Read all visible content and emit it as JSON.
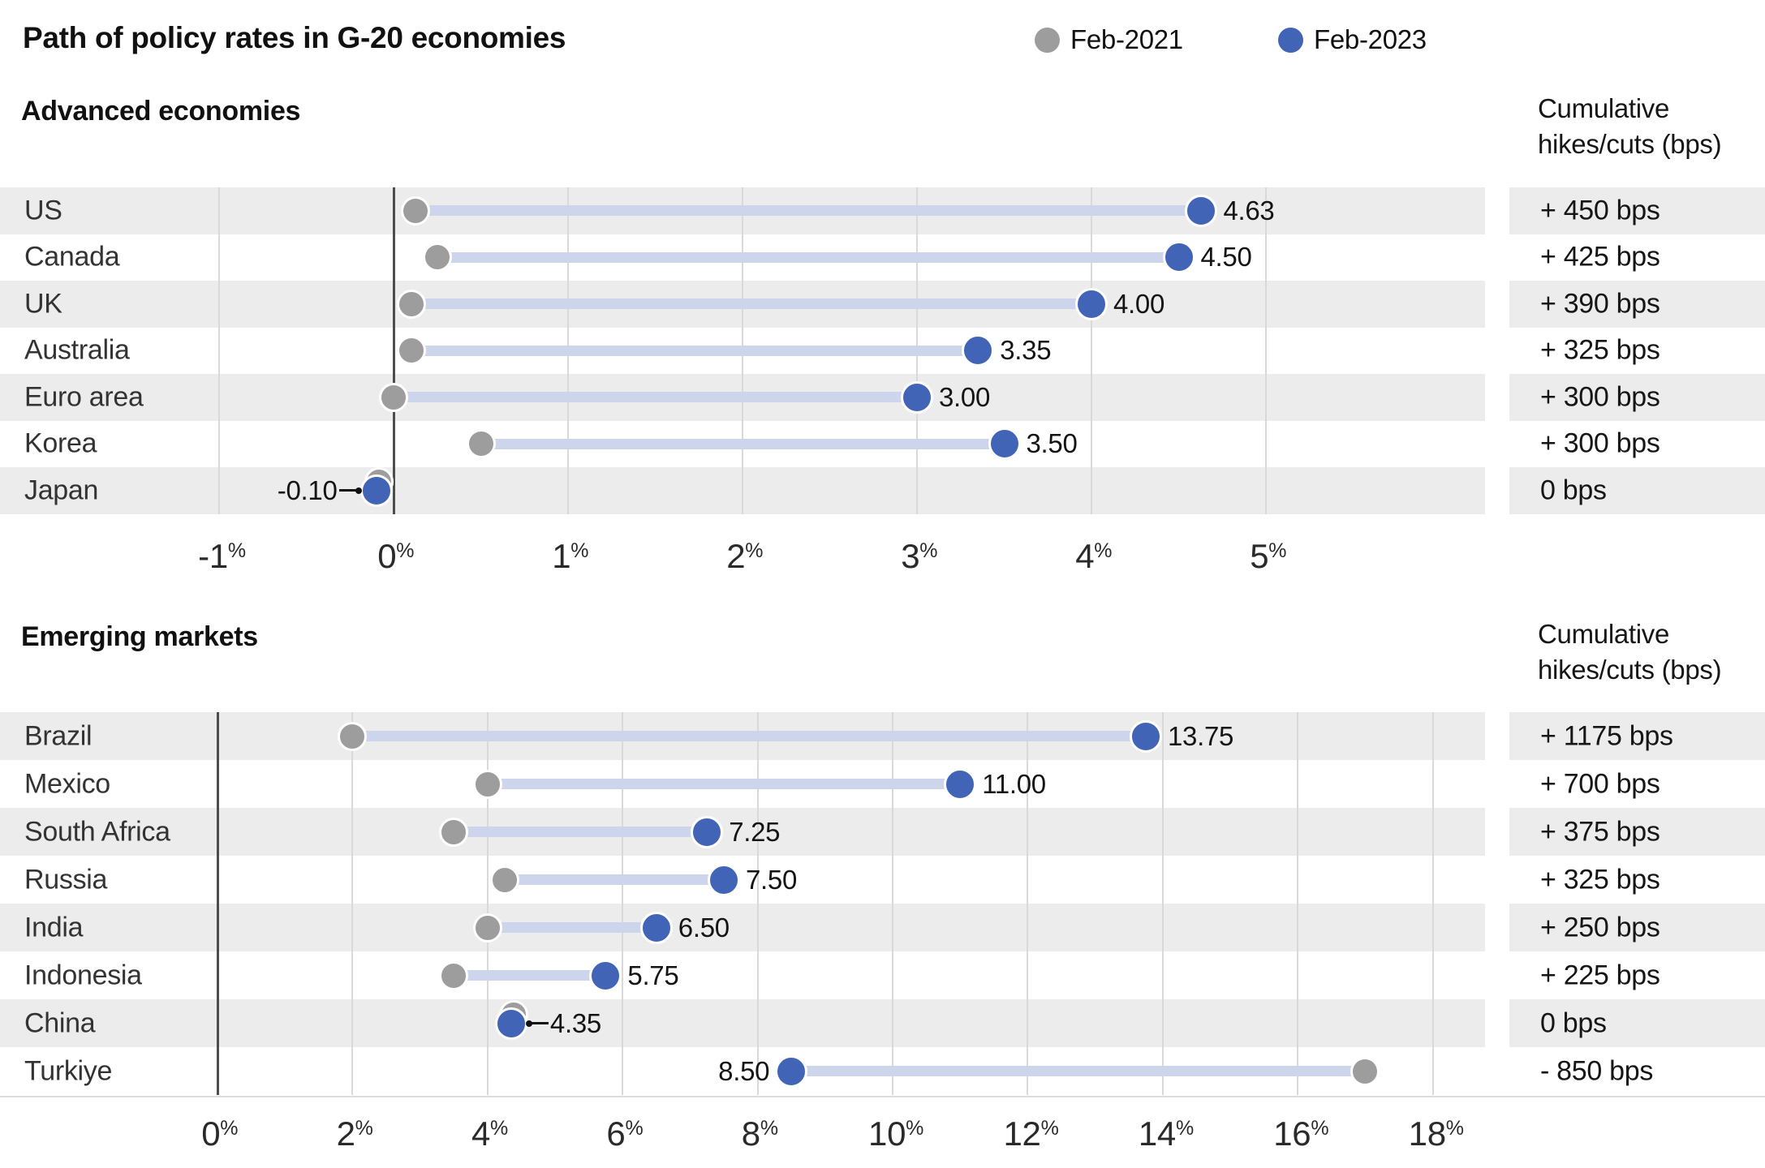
{
  "page": {
    "title": "Path of policy rates in G-20 economies"
  },
  "legend": [
    {
      "label": "Feb-2021",
      "key": "feb2021"
    },
    {
      "label": "Feb-2023",
      "key": "feb2023"
    }
  ],
  "colors": {
    "feb2021": "#9d9d9d",
    "feb2023": "#4164b6",
    "band": "#ccd5ec",
    "row_alt": "#ececec",
    "grid": "#d9d9d9",
    "zero_line": "#4d4d4d"
  },
  "chart_data": [
    {
      "type": "scatter",
      "variant": "dumbbell",
      "section_title": "Advanced economies",
      "cumulative_header": [
        "Cumulative",
        "hikes/cuts (bps)"
      ],
      "categories": [
        "US",
        "Canada",
        "UK",
        "Australia",
        "Euro area",
        "Korea",
        "Japan"
      ],
      "series": [
        {
          "name": "Feb-2021",
          "color_key": "feb2021",
          "values": [
            0.125,
            0.25,
            0.1,
            0.1,
            0,
            0.5,
            -0.1
          ]
        },
        {
          "name": "Feb-2023",
          "color_key": "feb2023",
          "values": [
            4.63,
            4.5,
            4,
            3.35,
            3,
            3.5,
            -0.1
          ]
        }
      ],
      "value_labels": [
        "4.63",
        "4.50",
        "4.00",
        "3.35",
        "3.00",
        "3.50",
        "-0.10"
      ],
      "value_label_side": [
        "right",
        "right",
        "right",
        "right",
        "right",
        "right",
        "left-connector"
      ],
      "cumulative": [
        "+ 450 bps",
        "+ 425 bps",
        "+ 390 bps",
        "+ 325 bps",
        "+ 300 bps",
        "+ 300 bps",
        "0 bps"
      ],
      "axis": {
        "ticks": [
          -1,
          0,
          1,
          2,
          3,
          4,
          5
        ],
        "unit": "%",
        "zero": 0,
        "xlim": [
          -1,
          6.25
        ],
        "grid": true
      },
      "legend_position": "top-right"
    },
    {
      "type": "scatter",
      "variant": "dumbbell",
      "section_title": "Emerging markets",
      "cumulative_header": [
        "Cumulative",
        "hikes/cuts (bps)"
      ],
      "categories": [
        "Brazil",
        "Mexico",
        "South Africa",
        "Russia",
        "India",
        "Indonesia",
        "China",
        "Turkiye"
      ],
      "series": [
        {
          "name": "Feb-2021",
          "color_key": "feb2021",
          "values": [
            2,
            4,
            3.5,
            4.25,
            4,
            3.5,
            4.35,
            17
          ]
        },
        {
          "name": "Feb-2023",
          "color_key": "feb2023",
          "values": [
            13.75,
            11,
            7.25,
            7.5,
            6.5,
            5.75,
            4.35,
            8.5
          ]
        }
      ],
      "value_labels": [
        "13.75",
        "11.00",
        "7.25",
        "7.50",
        "6.50",
        "5.75",
        "4.35",
        "8.50"
      ],
      "value_label_side": [
        "right",
        "right",
        "right",
        "right",
        "right",
        "right",
        "right-connector",
        "left"
      ],
      "cumulative": [
        "+ 1175 bps",
        "+ 700 bps",
        "+ 375 bps",
        "+ 325 bps",
        "+ 250 bps",
        "+ 225 bps",
        "0 bps",
        "- 850 bps"
      ],
      "axis": {
        "ticks": [
          0,
          2,
          4,
          6,
          8,
          10,
          12,
          14,
          16,
          18
        ],
        "unit": "%",
        "zero": 0,
        "xlim": [
          0,
          18.9
        ],
        "grid": true
      },
      "legend_position": "shared-top"
    }
  ]
}
